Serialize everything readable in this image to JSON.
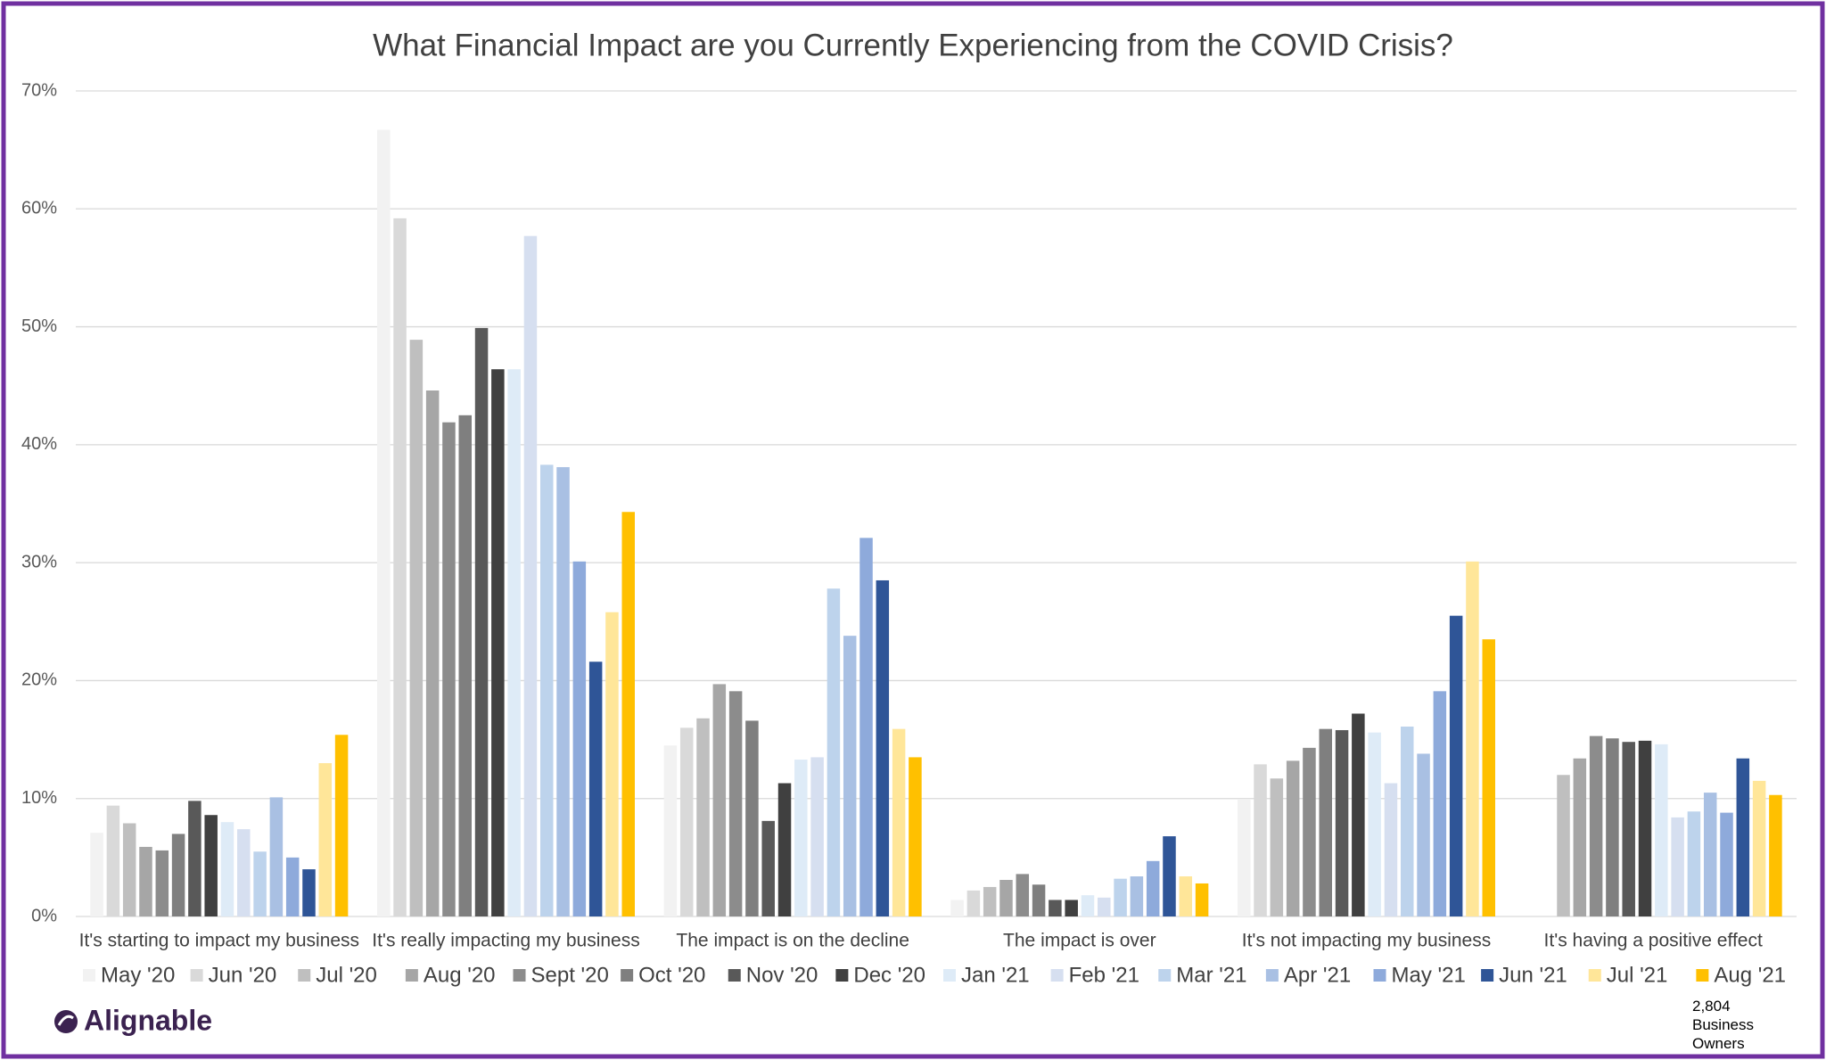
{
  "chart_data": {
    "type": "bar",
    "title": "What Financial Impact are you Currently Experiencing from the COVID Crisis?",
    "categories": [
      "It's starting to impact my business",
      "It's really impacting my business",
      "The impact is on the decline",
      "The impact is over",
      "It's not impacting my business",
      "It's having a positive effect"
    ],
    "series": [
      {
        "name": "May '20",
        "color": "#f2f2f2",
        "values": [
          7.1,
          66.7,
          14.5,
          1.4,
          9.9,
          null
        ]
      },
      {
        "name": "Jun '20",
        "color": "#d9d9d9",
        "values": [
          9.4,
          59.2,
          16.0,
          2.2,
          12.9,
          null
        ]
      },
      {
        "name": "Jul '20",
        "color": "#bfbfbf",
        "values": [
          7.9,
          48.9,
          16.8,
          2.5,
          11.7,
          12.0
        ]
      },
      {
        "name": "Aug '20",
        "color": "#a6a6a6",
        "values": [
          5.9,
          44.6,
          19.7,
          3.1,
          13.2,
          13.4
        ]
      },
      {
        "name": "Sept '20",
        "color": "#8c8c8c",
        "values": [
          5.6,
          41.9,
          19.1,
          3.6,
          14.3,
          15.3
        ]
      },
      {
        "name": "Oct '20",
        "color": "#7f7f7f",
        "values": [
          7.0,
          42.5,
          16.6,
          2.7,
          15.9,
          15.1
        ]
      },
      {
        "name": "Nov '20",
        "color": "#595959",
        "values": [
          9.8,
          49.9,
          8.1,
          1.4,
          15.8,
          14.8
        ]
      },
      {
        "name": "Dec '20",
        "color": "#404040",
        "values": [
          8.6,
          46.4,
          11.3,
          1.4,
          17.2,
          14.9
        ]
      },
      {
        "name": "Jan '21",
        "color": "#deebf7",
        "values": [
          8.0,
          46.4,
          13.3,
          1.8,
          15.6,
          14.6
        ]
      },
      {
        "name": "Feb '21",
        "color": "#d6dff0",
        "values": [
          7.4,
          57.7,
          13.5,
          1.6,
          11.3,
          8.4
        ]
      },
      {
        "name": "Mar '21",
        "color": "#bdd3ec",
        "values": [
          5.5,
          38.3,
          27.8,
          3.2,
          16.1,
          8.9
        ]
      },
      {
        "name": "Apr '21",
        "color": "#a9c0e3",
        "values": [
          10.1,
          38.1,
          23.8,
          3.4,
          13.8,
          10.5
        ]
      },
      {
        "name": "May '21",
        "color": "#8eaadb",
        "values": [
          5.0,
          30.1,
          32.1,
          4.7,
          19.1,
          8.8
        ]
      },
      {
        "name": "Jun '21",
        "color": "#2f5597",
        "values": [
          4.0,
          21.6,
          28.5,
          6.8,
          25.5,
          13.4
        ]
      },
      {
        "name": "Jul '21",
        "color": "#ffe699",
        "values": [
          13.0,
          25.8,
          15.9,
          3.4,
          30.1,
          11.5
        ]
      },
      {
        "name": "Aug '21",
        "color": "#ffc000",
        "values": [
          15.4,
          34.3,
          13.5,
          2.8,
          23.5,
          10.3
        ]
      }
    ],
    "ylim": [
      0,
      70
    ],
    "yticks": [
      {
        "value": 0,
        "label": "0%"
      },
      {
        "value": 10,
        "label": "10%"
      },
      {
        "value": 20,
        "label": "20%"
      },
      {
        "value": 30,
        "label": "30%"
      },
      {
        "value": 40,
        "label": "40%"
      },
      {
        "value": 50,
        "label": "50%"
      },
      {
        "value": 60,
        "label": "60%"
      },
      {
        "value": 70,
        "label": "70%"
      }
    ],
    "grid": true,
    "legend": "bottom",
    "logo": "Alignable",
    "note": "2,804 Business Owners"
  }
}
